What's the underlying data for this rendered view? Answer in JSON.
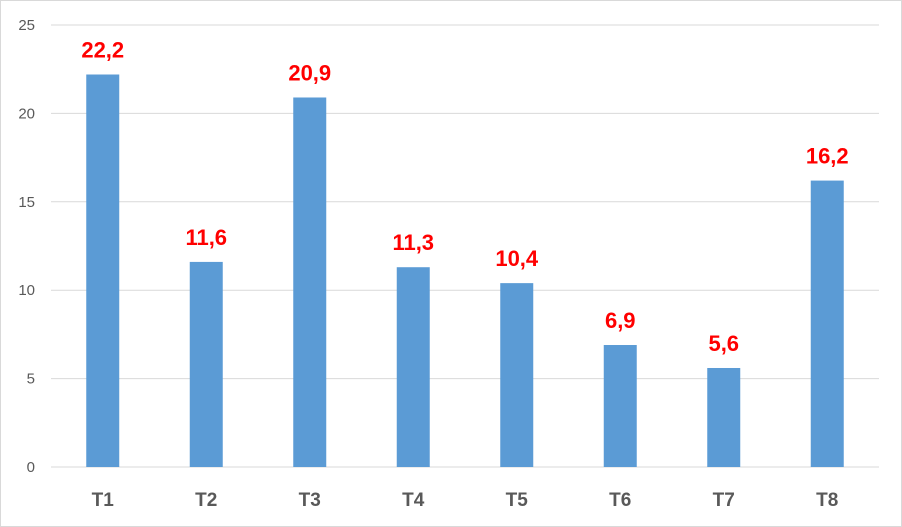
{
  "chart_data": {
    "type": "bar",
    "categories": [
      "T1",
      "T2",
      "T3",
      "T4",
      "T5",
      "T6",
      "T7",
      "T8"
    ],
    "values": [
      22.2,
      11.6,
      20.9,
      11.3,
      10.4,
      6.9,
      5.6,
      16.2
    ],
    "value_labels": [
      "22,2",
      "11,6",
      "20,9",
      "11,3",
      "10,4",
      "6,9",
      "5,6",
      "16,2"
    ],
    "y_ticks": [
      "0",
      "5",
      "10",
      "15",
      "20",
      "25"
    ],
    "ylim": [
      0,
      25
    ],
    "grid": true,
    "legend": "none",
    "title": "",
    "xlabel": "",
    "ylabel": "",
    "colors": {
      "bar": "#5b9bd5",
      "data_label": "#ff0000",
      "grid": "#d9d9d9",
      "tick_text": "#595959"
    }
  }
}
